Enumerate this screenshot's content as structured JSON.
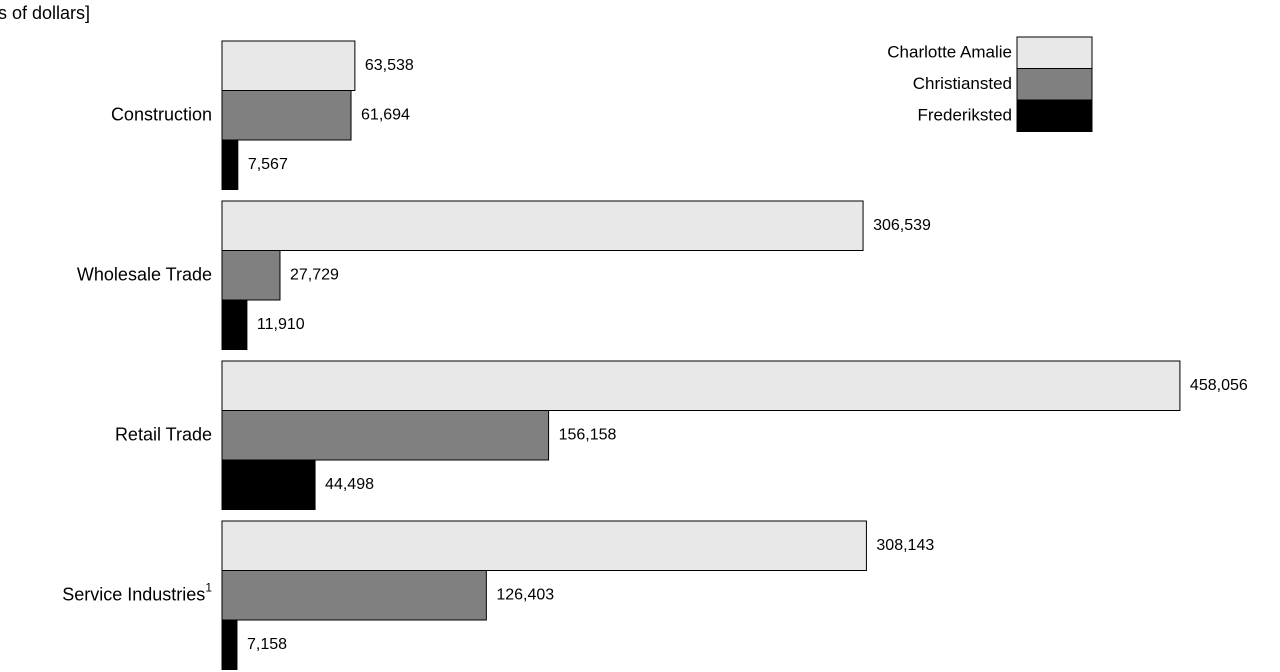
{
  "chart_data": {
    "type": "bar",
    "orientation": "horizontal",
    "subtitle": "s of dollars]",
    "categories": [
      "Construction",
      "Wholesale Trade",
      "Retail Trade",
      "Service Industries"
    ],
    "category_notes": [
      null,
      null,
      null,
      "1"
    ],
    "series": [
      {
        "name": "Charlotte Amalie",
        "color": "#e8e8e8",
        "values": [
          63538,
          306539,
          458056,
          308143
        ],
        "value_labels": [
          "63,538",
          "306,539",
          "458,056",
          "308,143"
        ]
      },
      {
        "name": "Christiansted",
        "color": "#808080",
        "values": [
          61694,
          27729,
          156158,
          126403
        ],
        "value_labels": [
          "61,694",
          "27,729",
          "156,158",
          "126,403"
        ]
      },
      {
        "name": "Frederiksted",
        "color": "#000000",
        "values": [
          7567,
          11910,
          44498,
          7158
        ],
        "value_labels": [
          "7,567",
          "11,910",
          "44,498",
          "7,158"
        ]
      }
    ],
    "xlim": [
      0,
      460000
    ],
    "legend": "upper right"
  }
}
